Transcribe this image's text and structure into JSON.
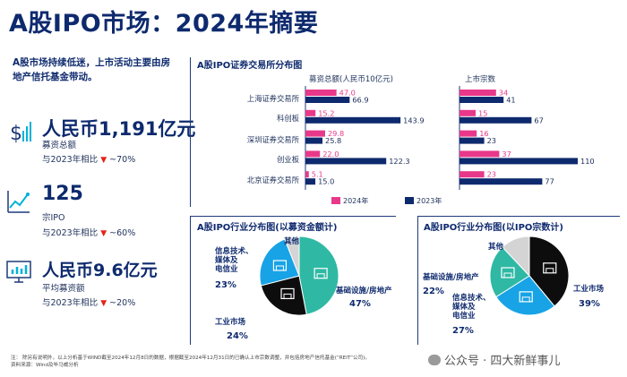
{
  "title": "A股IPO市场：2024年摘要",
  "intro": "A股市场持续低迷，上市活动主要由房地产信托基金带动。",
  "kpis": [
    {
      "icon": "dollar-growth-icon",
      "value": "人民币1,191亿元",
      "label": "募资总额",
      "compare": "与2023年相比",
      "arrow": "▼",
      "change": "~70%"
    },
    {
      "icon": "line-chart-icon",
      "value": "125",
      "label": "宗IPO",
      "compare": "与2023年相比",
      "arrow": "▼",
      "change": "~60%"
    },
    {
      "icon": "monitor-chart-icon",
      "value": "人民币9.6亿元",
      "label": "平均募资额",
      "compare": "与2023年相比",
      "arrow": "▼",
      "change": "~20%"
    }
  ],
  "exchange_panel": {
    "title": "A股IPO证券交易所分布图"
  },
  "pie_left": {
    "title": "A股IPO行业分布图(以募资金额计)"
  },
  "pie_right": {
    "title": "A股IPO行业分布图(以IPO宗数计)"
  },
  "colors": {
    "y2024": "#e8388a",
    "y2023": "#0e2a6e",
    "cyan": "#00b1d8",
    "sky": "#18a3e6",
    "teal": "#2fb9a4",
    "black": "#0d0d0d",
    "gray": "#d4d4d4"
  },
  "chart_data": [
    {
      "type": "bar",
      "title": "募资总额(人民币10亿元)",
      "categories": [
        "上海证券交易所",
        "科创板",
        "深圳证券交易所",
        "创业板",
        "北京证券交易所"
      ],
      "series": [
        {
          "name": "2024年",
          "values": [
            47.0,
            15.2,
            29.8,
            22.0,
            5.1
          ],
          "labels": [
            "47.0",
            "15.2",
            "29.8",
            "22.0",
            "5.1"
          ]
        },
        {
          "name": "2023年",
          "values": [
            66.9,
            143.9,
            25.8,
            122.3,
            15.0
          ],
          "labels": [
            "66.9",
            "143.9",
            "25.8",
            "122.3",
            "15.0"
          ]
        }
      ],
      "xlim": [
        0,
        160
      ]
    },
    {
      "type": "bar",
      "title": "上市宗数",
      "categories": [
        "上海证券交易所",
        "科创板",
        "深圳证券交易所",
        "创业板",
        "北京证券交易所"
      ],
      "series": [
        {
          "name": "2024年",
          "values": [
            34,
            15,
            16,
            37,
            23
          ],
          "labels": [
            "34",
            "15",
            "16",
            "37",
            "23"
          ]
        },
        {
          "name": "2023年",
          "values": [
            41,
            67,
            23,
            110,
            77
          ],
          "labels": [
            "41",
            "67",
            "23",
            "110",
            "77"
          ]
        }
      ],
      "xlim": [
        0,
        125
      ]
    },
    {
      "type": "pie",
      "title": "A股IPO行业分布图(以募资金额计)",
      "slices": [
        {
          "name": "基础设施/房地产",
          "value": 47,
          "label": "47%",
          "color": "#2fb9a4",
          "icon": "house-icon"
        },
        {
          "name": "工业市场",
          "value": 24,
          "label": "24%",
          "color": "#0d0d0d",
          "icon": "factory-icon"
        },
        {
          "name": "信息技术、媒体及电信业",
          "value": 23,
          "label": "23%",
          "color": "#18a3e6",
          "icon": "cloud-network-icon"
        },
        {
          "name": "其他",
          "value": 6,
          "label": "",
          "color": "#d4d4d4",
          "icon": ""
        }
      ]
    },
    {
      "type": "pie",
      "title": "A股IPO行业分布图(以IPO宗数计)",
      "slices": [
        {
          "name": "工业市场",
          "value": 39,
          "label": "39%",
          "color": "#0d0d0d",
          "icon": "factory-icon"
        },
        {
          "name": "信息技术、媒体及电信业",
          "value": 27,
          "label": "27%",
          "color": "#18a3e6",
          "icon": "cloud-network-icon"
        },
        {
          "name": "基础设施/房地产",
          "value": 22,
          "label": "22%",
          "color": "#2fb9a4",
          "icon": "house-icon"
        },
        {
          "name": "其他",
          "value": 12,
          "label": "",
          "color": "#d4d4d4",
          "icon": ""
        }
      ]
    }
  ],
  "pie_labels": {
    "left": {
      "infra": "基础设施/房地产",
      "infra_pct": "47%",
      "ind": "工业市场",
      "ind_pct": "24%",
      "tmt": "信息技术、媒体及电信业",
      "tmt_pct": "23%",
      "other": "其他"
    },
    "right": {
      "infra": "基础设施/房地产",
      "infra_pct": "22%",
      "ind": "工业市场",
      "ind_pct": "39%",
      "tmt": "信息技术、媒体及电信业",
      "tmt_pct": "27%",
      "other": "其他"
    }
  },
  "tmt_lines": [
    "信息技术、",
    "媒体及",
    "电信业"
  ],
  "footnote": [
    "注： 除另有说明外，以上分析基于WIND截至2024年12月8日的数据，根据截至2024年12月31日的已确认上市宗数调整，并包括房地产信托基金(“REIT”公司)。",
    "资料来源：Wind及毕马威分析"
  ],
  "watermark": "公众号 · 四大新鲜事儿"
}
